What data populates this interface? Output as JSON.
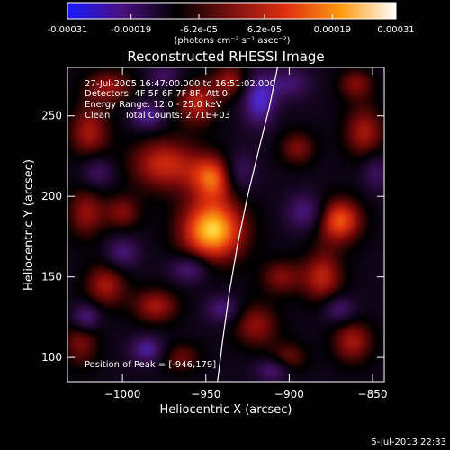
{
  "chart_data": {
    "type": "heatmap",
    "title": "Reconstructed RHESSI Image",
    "xlabel": "Heliocentric X (arcsec)",
    "ylabel": "Heliocentric Y (arcsec)",
    "xlim": [
      -1033,
      -843
    ],
    "ylim": [
      85,
      280
    ],
    "xticks": [
      -1000,
      -950,
      -900,
      -850
    ],
    "xtick_labels": [
      "−1000",
      "−950",
      "−900",
      "−850"
    ],
    "yticks": [
      100,
      150,
      200,
      250
    ],
    "ytick_labels": [
      "100",
      "150",
      "200",
      "250"
    ],
    "colorbar": {
      "min": -0.00031,
      "max": 0.00031,
      "tick_values": [
        -0.00031,
        -0.00019,
        -6.2e-05,
        6.2e-05,
        0.00019,
        0.00031
      ],
      "tick_labels": [
        "-0.00031",
        "-0.00019",
        "-6.2e-05",
        "6.2e-05",
        "0.00019",
        "0.00031"
      ],
      "units_label": "(photons cm⁻² s⁻¹ asec⁻²)",
      "colors": [
        "#1a1aff",
        "#4a1080",
        "#000000",
        "#7a1010",
        "#e03010",
        "#ff9a10",
        "#ffffff"
      ]
    },
    "annotations": {
      "time_range": "27-Jul-2005 16:47:00.000 to 16:51:02.000",
      "detectors": "Detectors: 4F 5F 6F 7F 8F, Att 0",
      "energy_range": "Energy Range: 12.0 - 25.0 keV",
      "method_counts": "Clean     Total Counts: 2.71E+03",
      "peak": "Position of Peak = [-946,179]"
    },
    "peak_position": [
      -946,
      179
    ],
    "limb_curve": {
      "x": [
        -943,
        -940,
        -936,
        -931,
        -925,
        -918,
        -912,
        -907
      ],
      "y": [
        85,
        110,
        140,
        170,
        200,
        230,
        255,
        280
      ]
    },
    "blobs": [
      {
        "x": -946,
        "y": 179,
        "amp": 1.0,
        "sx": 14,
        "sy": 14
      },
      {
        "x": -975,
        "y": 220,
        "amp": 0.6,
        "sx": 15,
        "sy": 12
      },
      {
        "x": -945,
        "y": 212,
        "amp": 0.7,
        "sx": 10,
        "sy": 10
      },
      {
        "x": -1020,
        "y": 240,
        "amp": 0.5,
        "sx": 9,
        "sy": 12
      },
      {
        "x": -1008,
        "y": 268,
        "amp": 0.45,
        "sx": 11,
        "sy": 8
      },
      {
        "x": -955,
        "y": 258,
        "amp": 0.55,
        "sx": 9,
        "sy": 10
      },
      {
        "x": -935,
        "y": 272,
        "amp": 0.45,
        "sx": 8,
        "sy": 8
      },
      {
        "x": -1000,
        "y": 190,
        "amp": 0.4,
        "sx": 8,
        "sy": 8
      },
      {
        "x": -1022,
        "y": 190,
        "amp": 0.45,
        "sx": 8,
        "sy": 12
      },
      {
        "x": -1010,
        "y": 145,
        "amp": 0.5,
        "sx": 9,
        "sy": 10
      },
      {
        "x": -1025,
        "y": 110,
        "amp": 0.4,
        "sx": 8,
        "sy": 12
      },
      {
        "x": -980,
        "y": 132,
        "amp": 0.5,
        "sx": 10,
        "sy": 8
      },
      {
        "x": -965,
        "y": 100,
        "amp": 0.35,
        "sx": 9,
        "sy": 7
      },
      {
        "x": -920,
        "y": 120,
        "amp": 0.45,
        "sx": 10,
        "sy": 10
      },
      {
        "x": -905,
        "y": 150,
        "amp": 0.4,
        "sx": 9,
        "sy": 8
      },
      {
        "x": -880,
        "y": 150,
        "amp": 0.55,
        "sx": 9,
        "sy": 12
      },
      {
        "x": -870,
        "y": 185,
        "amp": 0.75,
        "sx": 10,
        "sy": 10
      },
      {
        "x": -895,
        "y": 230,
        "amp": 0.4,
        "sx": 8,
        "sy": 8
      },
      {
        "x": -855,
        "y": 240,
        "amp": 0.5,
        "sx": 9,
        "sy": 12
      },
      {
        "x": -862,
        "y": 110,
        "amp": 0.5,
        "sx": 9,
        "sy": 10
      },
      {
        "x": -900,
        "y": 100,
        "amp": 0.35,
        "sx": 8,
        "sy": 7
      },
      {
        "x": -860,
        "y": 270,
        "amp": 0.4,
        "sx": 8,
        "sy": 7
      },
      {
        "x": -918,
        "y": 260,
        "amp": -0.7,
        "sx": 7,
        "sy": 11
      },
      {
        "x": -930,
        "y": 215,
        "amp": -0.45,
        "sx": 7,
        "sy": 9
      },
      {
        "x": -985,
        "y": 250,
        "amp": -0.55,
        "sx": 7,
        "sy": 6
      },
      {
        "x": -960,
        "y": 155,
        "amp": -0.5,
        "sx": 8,
        "sy": 6
      },
      {
        "x": -1000,
        "y": 165,
        "amp": -0.45,
        "sx": 7,
        "sy": 7
      },
      {
        "x": -1022,
        "y": 125,
        "amp": -0.6,
        "sx": 6,
        "sy": 6
      },
      {
        "x": -985,
        "y": 105,
        "amp": -0.55,
        "sx": 7,
        "sy": 6
      },
      {
        "x": -890,
        "y": 190,
        "amp": -0.5,
        "sx": 8,
        "sy": 8
      },
      {
        "x": -940,
        "y": 130,
        "amp": -0.45,
        "sx": 7,
        "sy": 6
      },
      {
        "x": -900,
        "y": 270,
        "amp": -0.4,
        "sx": 9,
        "sy": 7
      },
      {
        "x": -870,
        "y": 130,
        "amp": -0.45,
        "sx": 7,
        "sy": 6
      },
      {
        "x": -1015,
        "y": 215,
        "amp": -0.4,
        "sx": 7,
        "sy": 7
      },
      {
        "x": -910,
        "y": 92,
        "amp": -0.45,
        "sx": 7,
        "sy": 5
      },
      {
        "x": -848,
        "y": 215,
        "amp": -0.35,
        "sx": 6,
        "sy": 8
      },
      {
        "x": -975,
        "y": 275,
        "amp": -0.35,
        "sx": 7,
        "sy": 5
      }
    ]
  },
  "footer": {
    "timestamp": "5-Jul-2013 22:33"
  }
}
